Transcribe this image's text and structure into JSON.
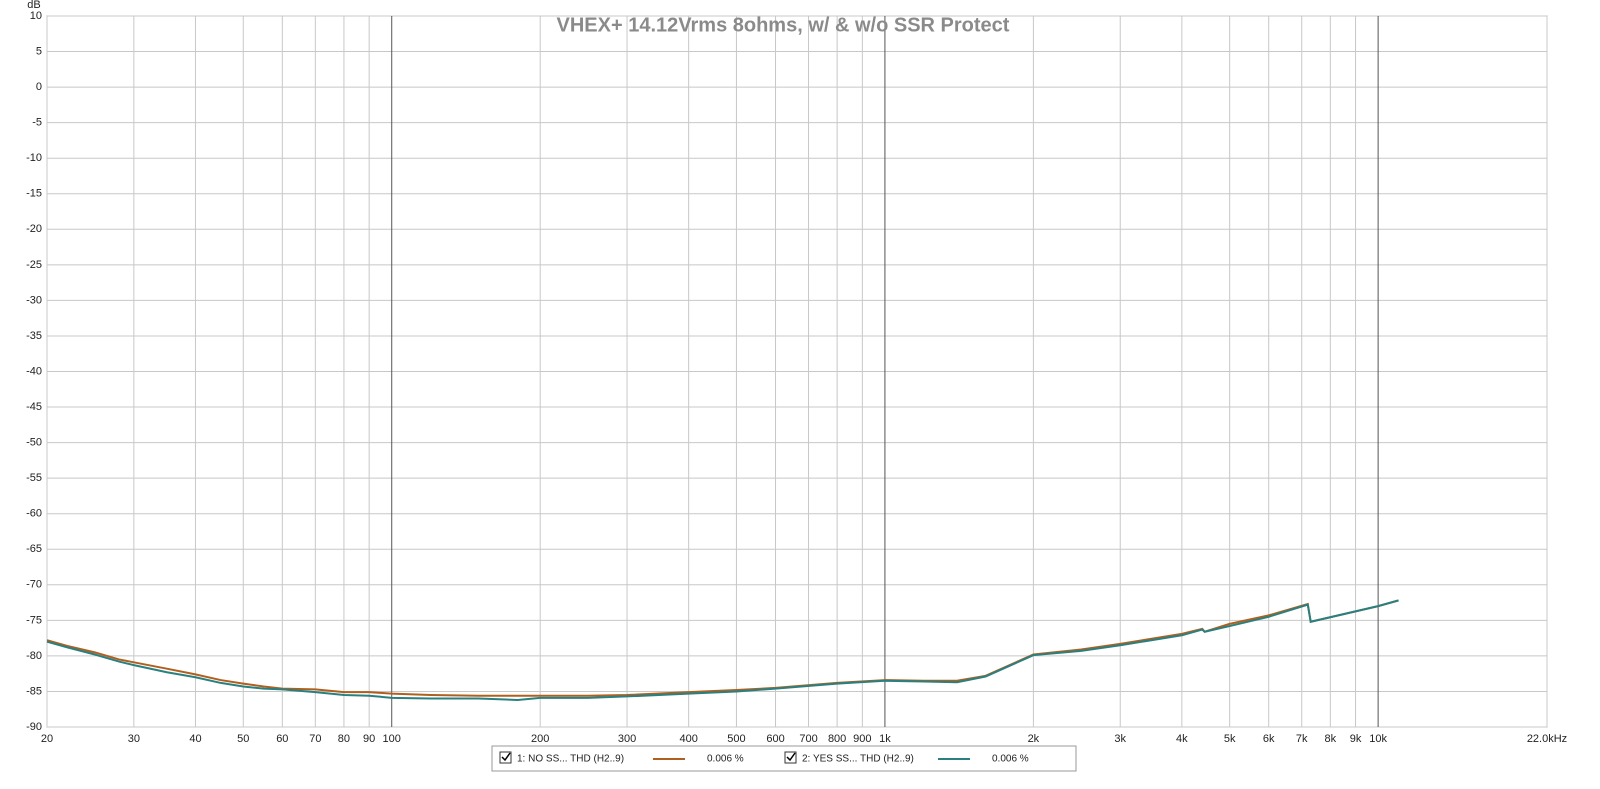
{
  "chart_data": {
    "type": "line",
    "title": "VHEX+ 14.12Vrms 8ohms, w/ & w/o SSR Protect",
    "y_label": "dB",
    "log_x": true,
    "grid": true,
    "xlim": [
      20,
      22000
    ],
    "ylim": [
      -90,
      10
    ],
    "xticks": [
      20,
      30,
      40,
      50,
      60,
      70,
      80,
      90,
      100,
      200,
      300,
      400,
      500,
      600,
      700,
      800,
      900,
      {
        "value": 1000,
        "label": "1k"
      },
      {
        "value": 2000,
        "label": "2k"
      },
      {
        "value": 3000,
        "label": "3k"
      },
      {
        "value": 4000,
        "label": "4k"
      },
      {
        "value": 5000,
        "label": "5k"
      },
      {
        "value": 6000,
        "label": "6k"
      },
      {
        "value": 7000,
        "label": "7k"
      },
      {
        "value": 8000,
        "label": "8k"
      },
      {
        "value": 9000,
        "label": "9k"
      },
      {
        "value": 10000,
        "label": "10k"
      },
      {
        "value": 22000,
        "label": "22.0kHz"
      }
    ],
    "yticks": [
      10,
      5,
      0,
      -5,
      -10,
      -15,
      -20,
      -25,
      -30,
      -35,
      -40,
      -45,
      -50,
      -55,
      -60,
      -65,
      -70,
      -75,
      -80,
      -85,
      -90
    ],
    "x": [
      20,
      22,
      25,
      28,
      30,
      35,
      40,
      45,
      50,
      55,
      60,
      70,
      80,
      90,
      100,
      120,
      150,
      180,
      200,
      250,
      300,
      400,
      500,
      600,
      800,
      1000,
      1200,
      1400,
      1600,
      2000,
      2500,
      3000,
      4000,
      4400,
      4450,
      5000,
      6000,
      7200,
      7300,
      10000,
      11000
    ],
    "series": [
      {
        "name": "1: NO SS... THD (H2..9)",
        "color": "#b0601e",
        "readout": "0.006 %",
        "values": [
          -77.8,
          -78.6,
          -79.5,
          -80.5,
          -80.9,
          -81.8,
          -82.6,
          -83.4,
          -83.9,
          -84.3,
          -84.6,
          -84.7,
          -85.1,
          -85.1,
          -85.3,
          -85.5,
          -85.6,
          -85.6,
          -85.6,
          -85.6,
          -85.5,
          -85.1,
          -84.8,
          -84.5,
          -83.8,
          -83.4,
          -83.5,
          -83.5,
          -82.8,
          -79.8,
          -79.1,
          -78.3,
          -76.9,
          -76.2,
          -76.6,
          -75.5,
          -74.3,
          -72.7,
          -75.2,
          -73.0,
          -72.2
        ]
      },
      {
        "name": "2: YES SS... THD (H2..9)",
        "color": "#2a8080",
        "readout": "0.006 %",
        "values": [
          -78.0,
          -78.8,
          -79.8,
          -80.8,
          -81.3,
          -82.3,
          -83.0,
          -83.8,
          -84.3,
          -84.6,
          -84.7,
          -85.1,
          -85.5,
          -85.6,
          -85.9,
          -86.0,
          -86.0,
          -86.2,
          -85.9,
          -85.9,
          -85.7,
          -85.3,
          -85.0,
          -84.6,
          -83.9,
          -83.5,
          -83.6,
          -83.7,
          -82.9,
          -79.9,
          -79.3,
          -78.5,
          -77.1,
          -76.3,
          -76.6,
          -75.8,
          -74.5,
          -72.8,
          -75.2,
          -73.0,
          -72.2
        ]
      }
    ]
  }
}
